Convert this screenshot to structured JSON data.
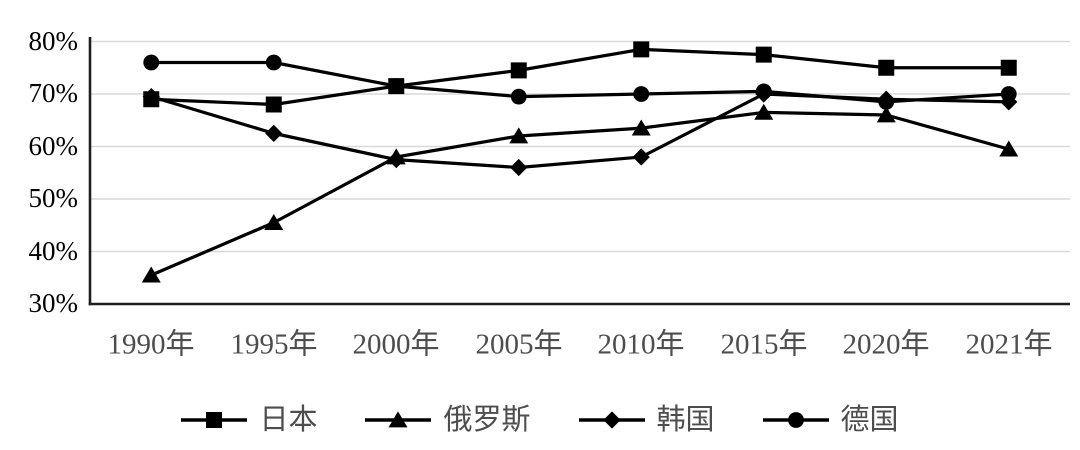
{
  "chart_data": {
    "type": "line",
    "title": "",
    "categories": [
      "1990年",
      "1995年",
      "2000年",
      "2005年",
      "2010年",
      "2015年",
      "2020年",
      "2021年"
    ],
    "y_ticks": [
      "80%",
      "70%",
      "60%",
      "50%",
      "40%",
      "30%"
    ],
    "y_axis": {
      "min": 30,
      "max": 80,
      "step": 10,
      "unit": "%"
    },
    "grid": "horizontal",
    "legend_position": "bottom",
    "series": [
      {
        "id": "japan",
        "name": "日本",
        "marker": "square",
        "color": "#000000",
        "values": [
          69,
          68,
          71.5,
          74.5,
          78.5,
          77.5,
          75,
          75
        ]
      },
      {
        "id": "russia",
        "name": "俄罗斯",
        "marker": "triangle",
        "color": "#000000",
        "values": [
          35.5,
          45.5,
          58,
          62,
          63.5,
          66.5,
          66,
          59.5
        ]
      },
      {
        "id": "korea",
        "name": "韩国",
        "marker": "diamond",
        "color": "#000000",
        "values": [
          69.5,
          62.5,
          57.5,
          56,
          58,
          70,
          69,
          68.5
        ]
      },
      {
        "id": "germany",
        "name": "德国",
        "marker": "circle",
        "color": "#000000",
        "values": [
          76,
          76,
          71.5,
          69.5,
          70,
          70.5,
          68.5,
          70
        ]
      }
    ],
    "colors": {
      "grid": "#d9d9d9",
      "axis": "#1f1f1f",
      "tick_label": "#000000",
      "category_label": "#4d4d4d",
      "legend_label": "#4d4d4d"
    }
  }
}
